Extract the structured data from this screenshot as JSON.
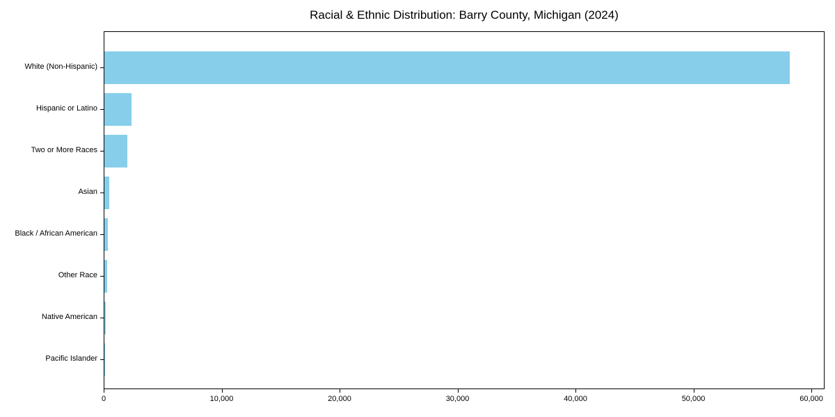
{
  "title": "Racial & Ethnic Distribution: Barry County, Michigan (2024)",
  "chart_data": {
    "type": "bar",
    "orientation": "horizontal",
    "title": "Racial & Ethnic Distribution: Barry County, Michigan (2024)",
    "xlabel": "",
    "ylabel": "",
    "categories": [
      "White (Non-Hispanic)",
      "Hispanic or Latino",
      "Two or More Races",
      "Asian",
      "Black / African American",
      "Other Race",
      "Native American",
      "Pacific Islander"
    ],
    "values": [
      58150,
      2330,
      1950,
      410,
      290,
      210,
      90,
      15
    ],
    "xlim": [
      0,
      61060
    ],
    "x_ticks": [
      0,
      10000,
      20000,
      30000,
      40000,
      50000,
      60000
    ],
    "x_tick_labels": [
      "0",
      "10,000",
      "20,000",
      "30,000",
      "40,000",
      "50,000",
      "60,000"
    ],
    "grid": false,
    "legend": null,
    "bar_color": "#87CEEB",
    "axis_color": "#000000",
    "background_color": "#FFFFFF"
  }
}
